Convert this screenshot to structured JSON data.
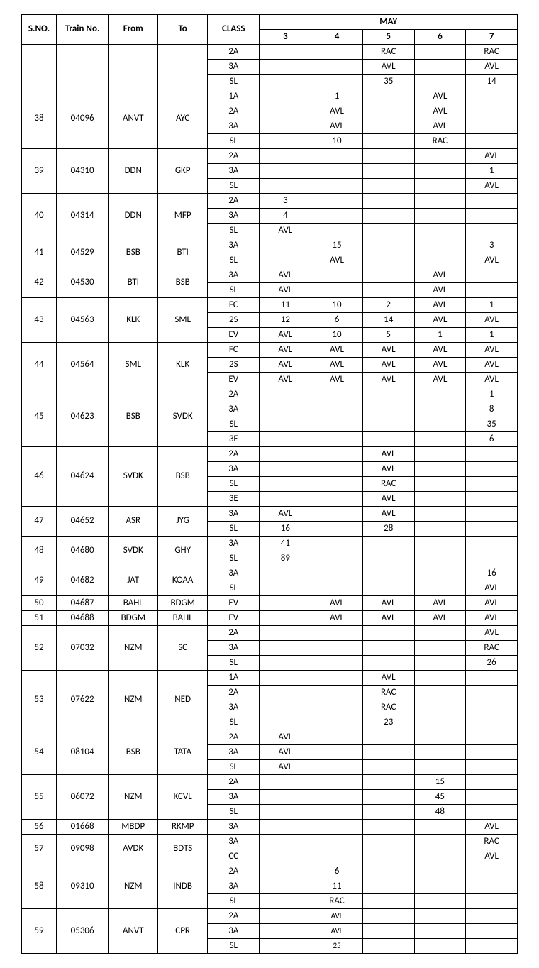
{
  "headers": {
    "sno": "S.NO.",
    "trainno": "Train No.",
    "from": "From",
    "to": "To",
    "class": "CLASS",
    "month": "MAY",
    "days": [
      "3",
      "4",
      "5",
      "6",
      "7"
    ]
  },
  "groups": [
    {
      "sno": "",
      "train": "",
      "from": "",
      "to": "",
      "rows": [
        {
          "cls": "2A",
          "d": [
            "",
            "",
            "RAC",
            "",
            "RAC"
          ]
        },
        {
          "cls": "3A",
          "d": [
            "",
            "",
            "AVL",
            "",
            "AVL"
          ]
        },
        {
          "cls": "SL",
          "d": [
            "",
            "",
            "35",
            "",
            "14"
          ]
        }
      ]
    },
    {
      "sno": "38",
      "train": "04096",
      "from": "ANVT",
      "to": "AYC",
      "rows": [
        {
          "cls": "1A",
          "d": [
            "",
            "1",
            "",
            "AVL",
            ""
          ]
        },
        {
          "cls": "2A",
          "d": [
            "",
            "AVL",
            "",
            "AVL",
            ""
          ]
        },
        {
          "cls": "3A",
          "d": [
            "",
            "AVL",
            "",
            "AVL",
            ""
          ]
        },
        {
          "cls": "SL",
          "d": [
            "",
            "10",
            "",
            "RAC",
            ""
          ]
        }
      ]
    },
    {
      "sno": "39",
      "train": "04310",
      "from": "DDN",
      "to": "GKP",
      "rows": [
        {
          "cls": "2A",
          "d": [
            "",
            "",
            "",
            "",
            "AVL"
          ]
        },
        {
          "cls": "3A",
          "d": [
            "",
            "",
            "",
            "",
            "1"
          ]
        },
        {
          "cls": "SL",
          "d": [
            "",
            "",
            "",
            "",
            "AVL"
          ]
        }
      ]
    },
    {
      "sno": "40",
      "train": "04314",
      "from": "DDN",
      "to": "MFP",
      "rows": [
        {
          "cls": "2A",
          "d": [
            "3",
            "",
            "",
            "",
            ""
          ]
        },
        {
          "cls": "3A",
          "d": [
            "4",
            "",
            "",
            "",
            ""
          ]
        },
        {
          "cls": "SL",
          "d": [
            "AVL",
            "",
            "",
            "",
            ""
          ]
        }
      ]
    },
    {
      "sno": "41",
      "train": "04529",
      "from": "BSB",
      "to": "BTI",
      "rows": [
        {
          "cls": "3A",
          "d": [
            "",
            "15",
            "",
            "",
            "3"
          ]
        },
        {
          "cls": "SL",
          "d": [
            "",
            "AVL",
            "",
            "",
            "AVL"
          ]
        }
      ]
    },
    {
      "sno": "42",
      "train": "04530",
      "from": "BTI",
      "to": "BSB",
      "rows": [
        {
          "cls": "3A",
          "d": [
            "AVL",
            "",
            "",
            "AVL",
            ""
          ]
        },
        {
          "cls": "SL",
          "d": [
            "AVL",
            "",
            "",
            "AVL",
            ""
          ]
        }
      ]
    },
    {
      "sno": "43",
      "train": "04563",
      "from": "KLK",
      "to": "SML",
      "rows": [
        {
          "cls": "FC",
          "d": [
            "11",
            "10",
            "2",
            "AVL",
            "1"
          ]
        },
        {
          "cls": "2S",
          "d": [
            "12",
            "6",
            "14",
            "AVL",
            "AVL"
          ]
        },
        {
          "cls": "EV",
          "d": [
            "AVL",
            "10",
            "5",
            "1",
            "1"
          ]
        }
      ]
    },
    {
      "sno": "44",
      "train": "04564",
      "from": "SML",
      "to": "KLK",
      "rows": [
        {
          "cls": "FC",
          "d": [
            "AVL",
            "AVL",
            "AVL",
            "AVL",
            "AVL"
          ]
        },
        {
          "cls": "2S",
          "d": [
            "AVL",
            "AVL",
            "AVL",
            "AVL",
            "AVL"
          ]
        },
        {
          "cls": "EV",
          "d": [
            "AVL",
            "AVL",
            "AVL",
            "AVL",
            "AVL"
          ]
        }
      ]
    },
    {
      "sno": "45",
      "train": "04623",
      "from": "BSB",
      "to": "SVDK",
      "rows": [
        {
          "cls": "2A",
          "d": [
            "",
            "",
            "",
            "",
            "1"
          ]
        },
        {
          "cls": "3A",
          "d": [
            "",
            "",
            "",
            "",
            "8"
          ]
        },
        {
          "cls": "SL",
          "d": [
            "",
            "",
            "",
            "",
            "35"
          ]
        },
        {
          "cls": "3E",
          "d": [
            "",
            "",
            "",
            "",
            "6"
          ]
        }
      ]
    },
    {
      "sno": "46",
      "train": "04624",
      "from": "SVDK",
      "to": "BSB",
      "rows": [
        {
          "cls": "2A",
          "d": [
            "",
            "",
            "AVL",
            "",
            ""
          ]
        },
        {
          "cls": "3A",
          "d": [
            "",
            "",
            "AVL",
            "",
            ""
          ]
        },
        {
          "cls": "SL",
          "d": [
            "",
            "",
            "RAC",
            "",
            ""
          ]
        },
        {
          "cls": "3E",
          "d": [
            "",
            "",
            "AVL",
            "",
            ""
          ]
        }
      ]
    },
    {
      "sno": "47",
      "train": "04652",
      "from": "ASR",
      "to": "JYG",
      "rows": [
        {
          "cls": "3A",
          "d": [
            "AVL",
            "",
            "AVL",
            "",
            ""
          ]
        },
        {
          "cls": "SL",
          "d": [
            "16",
            "",
            "28",
            "",
            ""
          ]
        }
      ]
    },
    {
      "sno": "48",
      "train": "04680",
      "from": "SVDK",
      "to": "GHY",
      "rows": [
        {
          "cls": "3A",
          "d": [
            "41",
            "",
            "",
            "",
            ""
          ]
        },
        {
          "cls": "SL",
          "d": [
            "89",
            "",
            "",
            "",
            ""
          ]
        }
      ]
    },
    {
      "sno": "49",
      "train": "04682",
      "from": "JAT",
      "to": "KOAA",
      "rows": [
        {
          "cls": "3A",
          "d": [
            "",
            "",
            "",
            "",
            "16"
          ]
        },
        {
          "cls": "SL",
          "d": [
            "",
            "",
            "",
            "",
            "AVL"
          ]
        }
      ]
    },
    {
      "sno": "50",
      "train": "04687",
      "from": "BAHL",
      "to": "BDGM",
      "rows": [
        {
          "cls": "EV",
          "d": [
            "",
            "AVL",
            "AVL",
            "AVL",
            "AVL"
          ]
        }
      ]
    },
    {
      "sno": "51",
      "train": "04688",
      "from": "BDGM",
      "to": "BAHL",
      "rows": [
        {
          "cls": "EV",
          "d": [
            "",
            "AVL",
            "AVL",
            "AVL",
            "AVL"
          ]
        }
      ]
    },
    {
      "sno": "52",
      "train": "07032",
      "from": "NZM",
      "to": "SC",
      "rows": [
        {
          "cls": "2A",
          "d": [
            "",
            "",
            "",
            "",
            "AVL"
          ]
        },
        {
          "cls": "3A",
          "d": [
            "",
            "",
            "",
            "",
            "RAC"
          ]
        },
        {
          "cls": "SL",
          "d": [
            "",
            "",
            "",
            "",
            "26"
          ]
        }
      ]
    },
    {
      "sno": "53",
      "train": "07622",
      "from": "NZM",
      "to": "NED",
      "rows": [
        {
          "cls": "1A",
          "d": [
            "",
            "",
            "AVL",
            "",
            ""
          ]
        },
        {
          "cls": "2A",
          "d": [
            "",
            "",
            "RAC",
            "",
            ""
          ]
        },
        {
          "cls": "3A",
          "d": [
            "",
            "",
            "RAC",
            "",
            ""
          ]
        },
        {
          "cls": "SL",
          "d": [
            "",
            "",
            "23",
            "",
            ""
          ]
        }
      ]
    },
    {
      "sno": "54",
      "train": "08104",
      "from": "BSB",
      "to": "TATA",
      "rows": [
        {
          "cls": "2A",
          "d": [
            "AVL",
            "",
            "",
            "",
            ""
          ]
        },
        {
          "cls": "3A",
          "d": [
            "AVL",
            "",
            "",
            "",
            ""
          ]
        },
        {
          "cls": "SL",
          "d": [
            "AVL",
            "",
            "",
            "",
            ""
          ]
        }
      ]
    },
    {
      "sno": "55",
      "train": "06072",
      "from": "NZM",
      "to": "KCVL",
      "rows": [
        {
          "cls": "2A",
          "d": [
            "",
            "",
            "",
            "15",
            ""
          ]
        },
        {
          "cls": "3A",
          "d": [
            "",
            "",
            "",
            "45",
            ""
          ]
        },
        {
          "cls": "SL",
          "d": [
            "",
            "",
            "",
            "48",
            ""
          ]
        }
      ]
    },
    {
      "sno": "56",
      "train": "01668",
      "from": "MBDP",
      "to": "RKMP",
      "rows": [
        {
          "cls": "3A",
          "d": [
            "",
            "",
            "",
            "",
            "AVL"
          ]
        }
      ]
    },
    {
      "sno": "57",
      "train": "09098",
      "from": "AVDK",
      "to": "BDTS",
      "rows": [
        {
          "cls": "3A",
          "d": [
            "",
            "",
            "",
            "",
            "RAC"
          ]
        },
        {
          "cls": "CC",
          "d": [
            "",
            "",
            "",
            "",
            "AVL"
          ]
        }
      ]
    },
    {
      "sno": "58",
      "train": "09310",
      "from": "NZM",
      "to": "INDB",
      "rows": [
        {
          "cls": "2A",
          "d": [
            "",
            "6",
            "",
            "",
            ""
          ]
        },
        {
          "cls": "3A",
          "d": [
            "",
            "11",
            "",
            "",
            ""
          ]
        },
        {
          "cls": "SL",
          "d": [
            "",
            "RAC",
            "",
            "",
            ""
          ]
        }
      ]
    },
    {
      "sno": "59",
      "train": "05306",
      "from": "ANVT",
      "to": "CPR",
      "small": true,
      "rows": [
        {
          "cls": "2A",
          "d": [
            "",
            "AVL",
            "",
            "",
            ""
          ]
        },
        {
          "cls": "3A",
          "d": [
            "",
            "AVL",
            "",
            "",
            ""
          ]
        },
        {
          "cls": "SL",
          "d": [
            "",
            "25",
            "",
            "",
            ""
          ]
        }
      ]
    }
  ]
}
